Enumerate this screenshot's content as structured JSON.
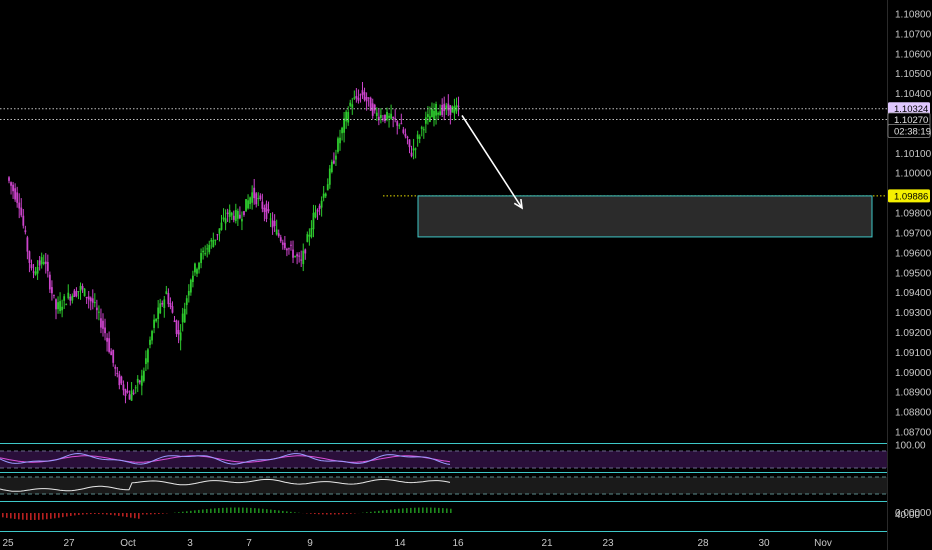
{
  "chart_data": {
    "type": "candlestick",
    "price_axis": {
      "ticks": [
        "1.10800",
        "1.10700",
        "1.10600",
        "1.10500",
        "1.10400",
        "1.10200",
        "1.10100",
        "1.10000",
        "1.09800",
        "1.09700",
        "1.09600",
        "1.09500",
        "1.09400",
        "1.09300",
        "1.09200",
        "1.09100",
        "1.09000",
        "1.08900",
        "1.08800",
        "1.08700"
      ],
      "range": [
        1.0866,
        1.1085
      ]
    },
    "price_tags": [
      {
        "label": "1.10324",
        "value": 1.10324,
        "style": "current",
        "bg": "#e0c8ff",
        "fg": "#000000"
      },
      {
        "label": "1.10270",
        "value": 1.1027,
        "style": "outline",
        "bg": "#000000",
        "fg": "#e0e0e0"
      },
      {
        "label": "02:38:19",
        "value": 1.10212,
        "style": "countdown",
        "bg": "#000000",
        "fg": "#e0e0e0"
      },
      {
        "label": "1.09886",
        "value": 1.09886,
        "style": "highlight",
        "bg": "#f5f000",
        "fg": "#000000"
      }
    ],
    "indicator_labels": [
      {
        "label": "100.00",
        "pane": "rsi_top"
      },
      {
        "label": "40.00",
        "pane": "rsi_low"
      },
      {
        "label": "0.00000",
        "pane": "macd"
      }
    ],
    "time_axis": {
      "labels": [
        {
          "text": "25",
          "bar": 0
        },
        {
          "text": "27",
          "bar": 10
        },
        {
          "text": "Oct",
          "bar": 20
        },
        {
          "text": "3",
          "bar": 30
        },
        {
          "text": "7",
          "bar": 40
        },
        {
          "text": "9",
          "bar": 50
        },
        {
          "text": "14",
          "bar": 60
        },
        {
          "text": "16",
          "bar": 70
        },
        {
          "text": "21",
          "bar": 80
        },
        {
          "text": "23",
          "bar": 90
        },
        {
          "text": "28",
          "bar": 100
        },
        {
          "text": "30",
          "bar": 110
        },
        {
          "text": "Nov",
          "bar": 120
        }
      ]
    },
    "key_path": [
      [
        0,
        1.0998
      ],
      [
        2,
        1.0985
      ],
      [
        4,
        1.095
      ],
      [
        6,
        1.0957
      ],
      [
        8,
        1.0932
      ],
      [
        10,
        1.0938
      ],
      [
        12,
        1.0942
      ],
      [
        14,
        1.0935
      ],
      [
        16,
        1.092
      ],
      [
        18,
        1.0897
      ],
      [
        20,
        1.0888
      ],
      [
        22,
        1.0897
      ],
      [
        24,
        1.0925
      ],
      [
        26,
        1.094
      ],
      [
        28,
        1.0918
      ],
      [
        30,
        1.0948
      ],
      [
        32,
        1.096
      ],
      [
        34,
        1.0968
      ],
      [
        36,
        1.098
      ],
      [
        38,
        1.0978
      ],
      [
        40,
        1.099
      ],
      [
        42,
        1.0982
      ],
      [
        44,
        1.097
      ],
      [
        46,
        1.0962
      ],
      [
        48,
        1.0955
      ],
      [
        50,
        1.0978
      ],
      [
        52,
        1.0992
      ],
      [
        54,
        1.1015
      ],
      [
        56,
        1.1035
      ],
      [
        58,
        1.104
      ],
      [
        60,
        1.103
      ],
      [
        62,
        1.1028
      ],
      [
        64,
        1.1025
      ],
      [
        66,
        1.101
      ],
      [
        68,
        1.1025
      ],
      [
        70,
        1.1032
      ]
    ],
    "projection_box": {
      "top": 1.09886,
      "bottom": 1.0968,
      "start_bar": 76,
      "end_bar": 128,
      "fill": "#2b2b2b",
      "border": "#3ec8c8"
    },
    "arrow": {
      "from": [
        71,
        1.1029
      ],
      "to": [
        81,
        1.0978
      ],
      "color": "#ffffff"
    },
    "colors": {
      "up": "#2ecc2e",
      "down": "#cc44cc",
      "dotted": "#bfbfbf",
      "cyan": "#3ec8c8",
      "rsi_fill": "#2a0f3a"
    }
  }
}
